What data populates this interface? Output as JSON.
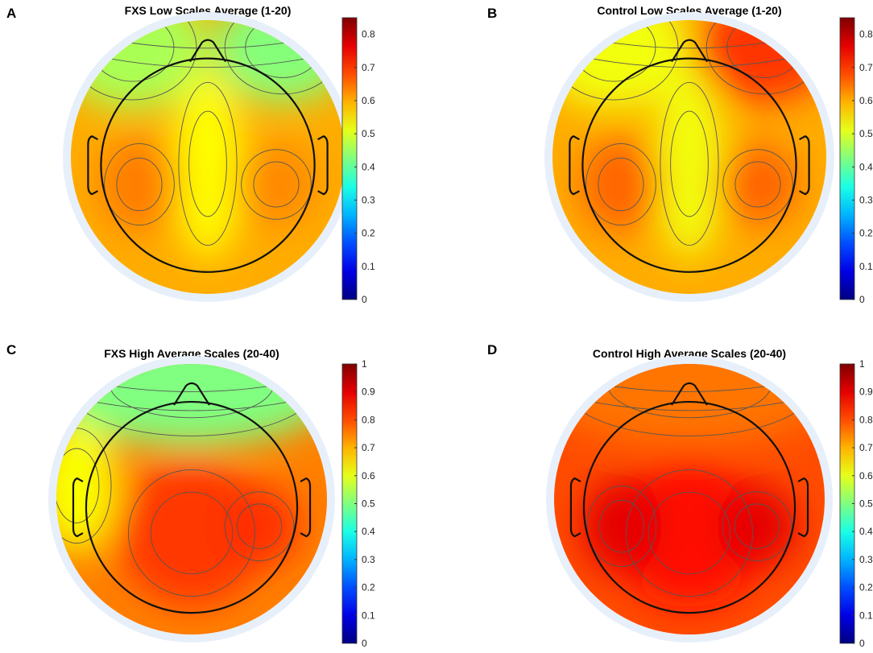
{
  "chart_data": [
    {
      "type": "heatmap",
      "letter": "A",
      "title": "FXS Low Scales Average (1-20)",
      "colorbar": {
        "min": 0,
        "max": 0.85,
        "ticks": [
          "0",
          "0.1",
          "0.2",
          "0.3",
          "0.4",
          "0.5",
          "0.6",
          "0.7",
          "0.8"
        ]
      },
      "background_value": 0.6,
      "blobs": [
        {
          "region": "frontal-left",
          "value": 0.46
        },
        {
          "region": "frontal-right",
          "value": 0.43
        },
        {
          "region": "midline",
          "value": 0.53
        },
        {
          "region": "temporal-left",
          "value": 0.64
        },
        {
          "region": "temporal-right",
          "value": 0.63
        }
      ]
    },
    {
      "type": "heatmap",
      "letter": "B",
      "title": "Control Low Scales Average (1-20)",
      "colorbar": {
        "min": 0,
        "max": 0.85,
        "ticks": [
          "0",
          "0.1",
          "0.2",
          "0.3",
          "0.4",
          "0.5",
          "0.6",
          "0.7",
          "0.8"
        ]
      },
      "background_value": 0.6,
      "blobs": [
        {
          "region": "frontal-right",
          "value": 0.7
        },
        {
          "region": "frontal-left",
          "value": 0.52
        },
        {
          "region": "midline",
          "value": 0.52
        },
        {
          "region": "temporal-left",
          "value": 0.66
        },
        {
          "region": "temporal-right",
          "value": 0.66
        }
      ]
    },
    {
      "type": "heatmap",
      "letter": "C",
      "title": "FXS High Average Scales (20-40)",
      "colorbar": {
        "min": 0,
        "max": 1,
        "ticks": [
          "0",
          "0.1",
          "0.2",
          "0.3",
          "0.4",
          "0.5",
          "0.6",
          "0.7",
          "0.8",
          "0.9",
          "1"
        ]
      },
      "background_value": 0.75,
      "blobs": [
        {
          "region": "frontal",
          "value": 0.5
        },
        {
          "region": "central",
          "value": 0.82
        },
        {
          "region": "temporal-right",
          "value": 0.83
        },
        {
          "region": "lateral-left",
          "value": 0.62
        }
      ]
    },
    {
      "type": "heatmap",
      "letter": "D",
      "title": "Control High Average Scales (20-40)",
      "colorbar": {
        "min": 0,
        "max": 1,
        "ticks": [
          "0",
          "0.1",
          "0.2",
          "0.3",
          "0.4",
          "0.5",
          "0.6",
          "0.7",
          "0.8",
          "0.9",
          "1"
        ]
      },
      "background_value": 0.8,
      "blobs": [
        {
          "region": "frontal",
          "value": 0.76
        },
        {
          "region": "central",
          "value": 0.86
        },
        {
          "region": "temporal-left",
          "value": 0.9
        },
        {
          "region": "temporal-right",
          "value": 0.9
        }
      ]
    }
  ]
}
